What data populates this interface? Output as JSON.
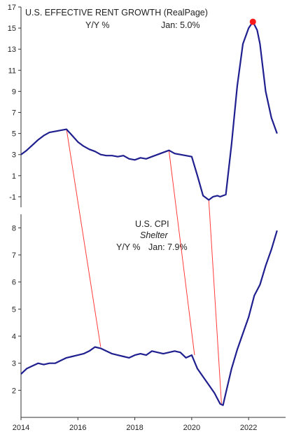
{
  "chart_data": [
    {
      "type": "line",
      "title": "U.S. EFFECTIVE RENT GROWTH (RealPage)",
      "subtitle_units": "Y/Y %",
      "latest_label": "Jan: 5.0%",
      "ylim": [
        -2,
        17
      ],
      "yticks": [
        "-1",
        "1",
        "3",
        "5",
        "7",
        "9",
        "11",
        "13",
        "15",
        "17"
      ],
      "line_color": "#1f1f8f",
      "peak_marker_color": "#ff1a1a",
      "series": [
        {
          "x": [
            2014.0,
            2014.2,
            2014.4,
            2014.6,
            2014.8,
            2015.0,
            2015.2,
            2015.4,
            2015.6,
            2015.8,
            2016.0,
            2016.2,
            2016.4,
            2016.6,
            2016.8,
            2017.0,
            2017.2,
            2017.4,
            2017.6,
            2017.8,
            2018.0,
            2018.2,
            2018.4,
            2018.6,
            2018.8,
            2019.0,
            2019.2,
            2019.4,
            2019.6,
            2019.8,
            2020.0,
            2020.2,
            2020.4,
            2020.6,
            2020.75,
            2020.9,
            2021.0,
            2021.2,
            2021.4,
            2021.6,
            2021.8,
            2022.0,
            2022.15,
            2022.3,
            2022.4,
            2022.6,
            2022.8,
            2023.0
          ],
          "values": [
            3.0,
            3.4,
            3.9,
            4.4,
            4.8,
            5.1,
            5.2,
            5.3,
            5.4,
            4.8,
            4.2,
            3.8,
            3.5,
            3.3,
            3.0,
            2.9,
            2.9,
            2.8,
            2.9,
            2.6,
            2.5,
            2.7,
            2.6,
            2.8,
            3.0,
            3.2,
            3.4,
            3.1,
            3.0,
            2.9,
            2.8,
            1.0,
            -0.9,
            -1.3,
            -1.0,
            -0.9,
            -1.0,
            -0.8,
            4.0,
            9.5,
            13.5,
            15.0,
            15.6,
            14.8,
            13.5,
            9.0,
            6.5,
            5.0
          ]
        }
      ],
      "peak": {
        "x": 2022.15,
        "y": 15.6
      }
    },
    {
      "type": "line",
      "title": "U.S. CPI",
      "subtitle": "Shelter",
      "subtitle_units": "Y/Y %",
      "latest_label": "Jan: 7.9%",
      "ylim": [
        1,
        8.5
      ],
      "yticks": [
        "2",
        "3",
        "4",
        "5",
        "6",
        "7",
        "8"
      ],
      "xlim": [
        2014,
        2023.3
      ],
      "xticks": [
        "2014",
        "2016",
        "2018",
        "2020",
        "2022"
      ],
      "line_color": "#1f1f8f",
      "series": [
        {
          "x": [
            2014.0,
            2014.2,
            2014.4,
            2014.6,
            2014.8,
            2015.0,
            2015.2,
            2015.4,
            2015.6,
            2015.8,
            2016.0,
            2016.2,
            2016.4,
            2016.6,
            2016.8,
            2017.0,
            2017.2,
            2017.4,
            2017.6,
            2017.8,
            2018.0,
            2018.2,
            2018.4,
            2018.6,
            2018.8,
            2019.0,
            2019.2,
            2019.4,
            2019.6,
            2019.8,
            2020.0,
            2020.2,
            2020.4,
            2020.6,
            2020.8,
            2021.0,
            2021.1,
            2021.2,
            2021.4,
            2021.6,
            2021.8,
            2022.0,
            2022.2,
            2022.4,
            2022.6,
            2022.8,
            2023.0
          ],
          "values": [
            2.6,
            2.8,
            2.9,
            3.0,
            2.95,
            3.0,
            3.0,
            3.1,
            3.2,
            3.25,
            3.3,
            3.35,
            3.45,
            3.6,
            3.55,
            3.45,
            3.35,
            3.3,
            3.25,
            3.2,
            3.3,
            3.35,
            3.3,
            3.45,
            3.4,
            3.35,
            3.4,
            3.45,
            3.4,
            3.2,
            3.3,
            2.8,
            2.5,
            2.2,
            1.9,
            1.5,
            1.45,
            1.9,
            2.8,
            3.5,
            4.1,
            4.7,
            5.5,
            5.9,
            6.6,
            7.2,
            7.9
          ]
        }
      ]
    }
  ],
  "lead_lines": {
    "color": "#ff3b3b",
    "pairs": [
      {
        "from": [
          2015.6,
          5.4
        ],
        "to": [
          2016.8,
          3.6
        ]
      },
      {
        "from": [
          2019.2,
          3.4
        ],
        "to": [
          2020.1,
          3.3
        ]
      },
      {
        "from": [
          2020.6,
          -1.3
        ],
        "to": [
          2021.05,
          1.45
        ]
      }
    ]
  }
}
